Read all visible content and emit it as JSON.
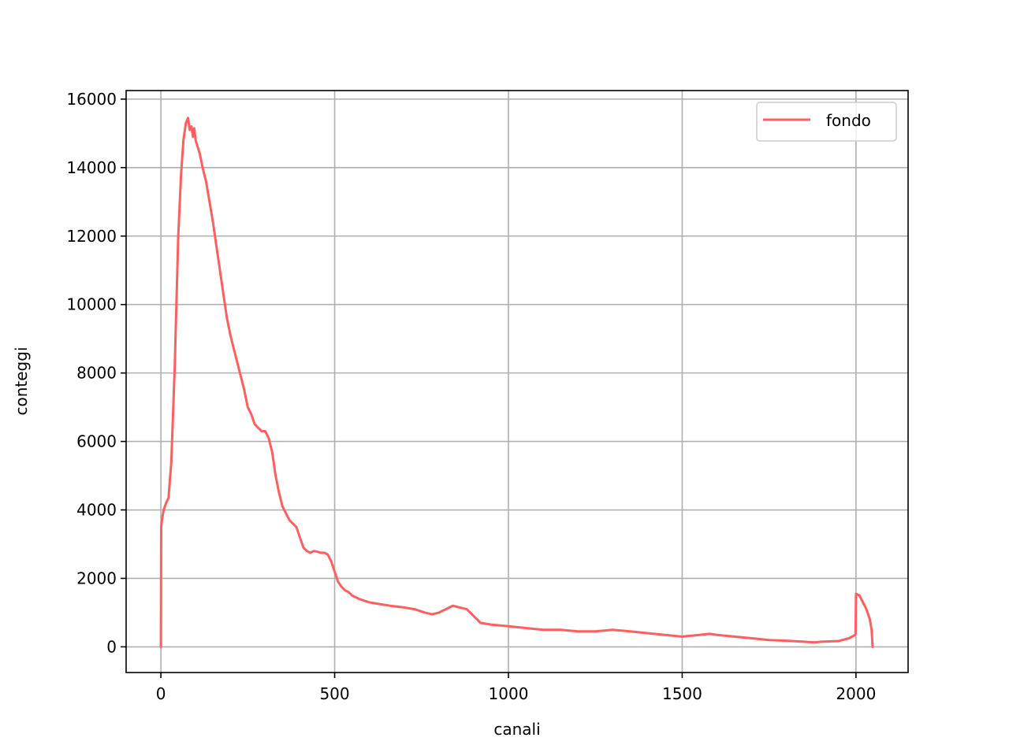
{
  "chart_data": {
    "type": "line",
    "title": "",
    "xlabel": "canali",
    "ylabel": "conteggi",
    "xlim": [
      -100,
      2150
    ],
    "ylim": [
      -750,
      16250
    ],
    "xticks": [
      0,
      500,
      1000,
      1500,
      2000
    ],
    "yticks": [
      0,
      2000,
      4000,
      6000,
      8000,
      10000,
      12000,
      14000,
      16000
    ],
    "grid": true,
    "legend_placement": "upper right",
    "series": [
      {
        "name": "fondo",
        "color": "#ff5e5e",
        "x": [
          0,
          1,
          3,
          8,
          15,
          22,
          30,
          40,
          50,
          58,
          65,
          72,
          78,
          83,
          88,
          92,
          96,
          100,
          106,
          112,
          120,
          130,
          140,
          150,
          160,
          170,
          180,
          190,
          200,
          210,
          220,
          230,
          240,
          250,
          260,
          270,
          280,
          290,
          300,
          310,
          320,
          330,
          340,
          350,
          360,
          370,
          380,
          390,
          400,
          410,
          420,
          430,
          440,
          450,
          460,
          470,
          480,
          490,
          500,
          510,
          520,
          530,
          540,
          550,
          570,
          600,
          630,
          660,
          700,
          730,
          760,
          780,
          800,
          820,
          840,
          860,
          880,
          900,
          920,
          950,
          1000,
          1050,
          1100,
          1150,
          1200,
          1250,
          1300,
          1350,
          1400,
          1450,
          1500,
          1550,
          1580,
          1600,
          1650,
          1700,
          1750,
          1800,
          1850,
          1880,
          1900,
          1950,
          1980,
          1998,
          1999,
          2000,
          2010,
          2020,
          2030,
          2040,
          2045,
          2048
        ],
        "y": [
          0,
          3500,
          3700,
          4000,
          4200,
          4350,
          5400,
          8200,
          12000,
          13800,
          14800,
          15300,
          15450,
          15100,
          15200,
          14900,
          15150,
          14800,
          14600,
          14400,
          14000,
          13600,
          13000,
          12400,
          11700,
          11000,
          10300,
          9600,
          9100,
          8700,
          8300,
          7900,
          7500,
          7000,
          6800,
          6500,
          6400,
          6300,
          6300,
          6100,
          5700,
          5000,
          4500,
          4100,
          3900,
          3700,
          3600,
          3500,
          3200,
          2900,
          2800,
          2750,
          2800,
          2780,
          2750,
          2750,
          2700,
          2500,
          2200,
          1900,
          1750,
          1650,
          1600,
          1500,
          1400,
          1300,
          1250,
          1200,
          1150,
          1100,
          1000,
          950,
          1000,
          1100,
          1200,
          1150,
          1100,
          900,
          700,
          650,
          600,
          550,
          500,
          500,
          450,
          450,
          500,
          450,
          400,
          350,
          300,
          350,
          380,
          350,
          300,
          250,
          200,
          180,
          150,
          130,
          150,
          170,
          250,
          350,
          380,
          1550,
          1500,
          1300,
          1100,
          800,
          500,
          0
        ]
      }
    ]
  }
}
